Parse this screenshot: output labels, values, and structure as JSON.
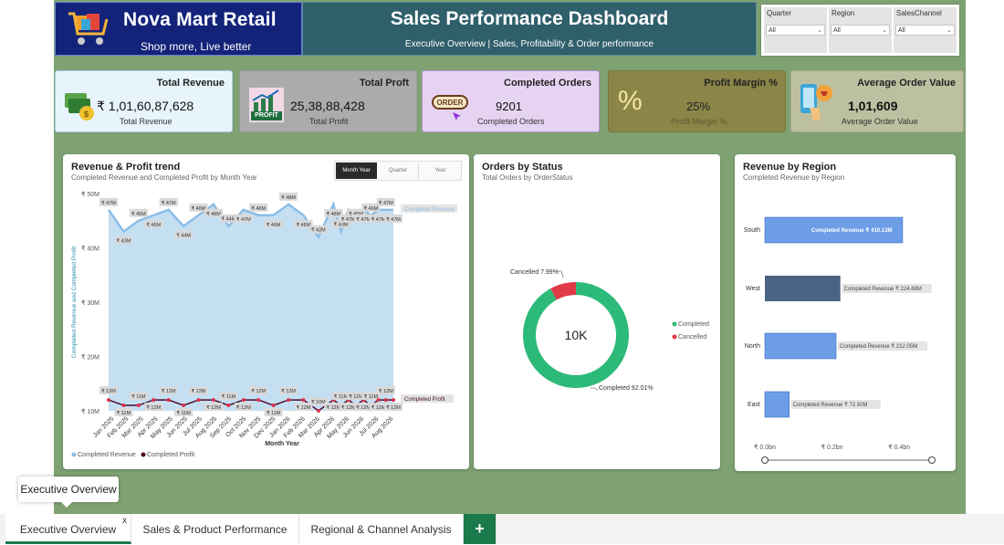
{
  "brand": {
    "name": "Nova Mart Retail",
    "tagline": "Shop more, Live better"
  },
  "header": {
    "title": "Sales Performance Dashboard",
    "subtitle": "Executive Overview | Sales, Profitability & Order performance"
  },
  "filters": [
    {
      "label": "Quarter",
      "value": "All"
    },
    {
      "label": "Region",
      "value": "All"
    },
    {
      "label": "SalesChannel",
      "value": "All"
    }
  ],
  "kpis": [
    {
      "title": "Total Revenue",
      "value": "₹ 1,01,60,87,628",
      "label": "Total Revenue",
      "icon": "money-icon"
    },
    {
      "title": "Total Proft",
      "value": "25,38,88,428",
      "label": "Total Profit",
      "icon": "profit-chart-icon",
      "badge": "PROFIT"
    },
    {
      "title": "Completed Orders",
      "value": "9201",
      "label": "Completed Orders",
      "icon": "order-icon",
      "badge": "ORDER"
    },
    {
      "title": "Profit Margin %",
      "value": "25%",
      "label": "Profit Margin %",
      "icon": "percent-icon"
    },
    {
      "title": "Average Order Value",
      "value": "1,01,609",
      "label": "Average Order Value",
      "icon": "phone-shop-icon"
    }
  ],
  "trend": {
    "title": "Revenue & Profit trend",
    "subtitle": "Completed Revenue and Completed Profit by Month Year",
    "toggles": [
      "Month Year",
      "Quarter",
      "Year"
    ],
    "active_toggle": "Month Year",
    "xlabel": "Month Year",
    "ylabel": "Completed Revenue and Completed Profit",
    "legend": [
      "Completed Revenue",
      "Completed Profit"
    ],
    "series_revenue_label": "Completed Revenue",
    "series_profit_label": "Completed Profit"
  },
  "chart_data": [
    {
      "type": "line",
      "title": "Revenue & Profit trend",
      "subtitle": "Completed Revenue and Completed Profit by Month Year",
      "xlabel": "Month Year",
      "ylabel": "Completed Revenue and Completed Profit",
      "y_ticks": [
        "₹ 10M",
        "₹ 20M",
        "₹ 30M",
        "₹ 40M",
        "₹ 50M"
      ],
      "ylim": [
        10,
        50
      ],
      "x_tick_labels": [
        "Jan 2025",
        "Feb 2025",
        "Mar 2025",
        "Apr 2025",
        "May 2025",
        "Jun 2025",
        "Jul 2025",
        "Aug 2025",
        "Sep 2025",
        "Oct 2025",
        "Nov 2025",
        "Dec 2025",
        "Jan 2026",
        "Feb 2026",
        "Mar 2026",
        "Apr 2026",
        "May 2026",
        "Jun 2026",
        "Jul 2026",
        "Aug 2026"
      ],
      "x_index": [
        0,
        1,
        2,
        3,
        4,
        5,
        6,
        7,
        8,
        9,
        10,
        11,
        12,
        13,
        14,
        15,
        15.5,
        16,
        16.5,
        17,
        17.5,
        18,
        18.5,
        19
      ],
      "series": [
        {
          "name": "Completed Revenue",
          "color": "#8bbde6",
          "values": [
            47,
            43,
            45,
            46,
            47,
            44,
            46,
            48,
            44,
            47,
            46,
            46,
            48,
            46,
            42,
            48,
            43,
            47,
            45,
            47,
            46,
            47,
            47,
            47
          ],
          "labels": [
            "₹ 47M",
            "₹ 43M",
            "₹ 45M",
            "₹ 46M",
            "₹ 47M",
            "₹ 44M",
            "₹ 46M",
            "₹ 48M",
            "₹ 44M",
            "₹ 47M",
            "₹ 46M",
            "₹ 46M",
            "₹ 48M",
            "₹ 46M",
            "₹ 42M",
            "₹ 48M",
            "₹ 43M",
            "₹ 47M",
            "₹ 45M",
            "₹ 47M",
            "₹ 46M",
            "₹ 47M",
            "₹ 47M",
            "₹ 47M"
          ]
        },
        {
          "name": "Completed Profit",
          "color": "#4a0a2c",
          "values": [
            12,
            11,
            11,
            12,
            12,
            11,
            12,
            12,
            11,
            12,
            12,
            11,
            12,
            12,
            10,
            12,
            11,
            12,
            11,
            12,
            11,
            12,
            12,
            12
          ],
          "labels": [
            "₹ 12M",
            "₹ 11M",
            "₹ 11M",
            "₹ 12M",
            "₹ 12M",
            "₹ 11M",
            "₹ 12M",
            "₹ 12M",
            "₹ 11M",
            "₹ 12M",
            "₹ 12M",
            "₹ 11M",
            "₹ 12M",
            "₹ 12M",
            "₹ 10M",
            "₹ 12M",
            "₹ 11M",
            "₹ 12M",
            "₹ 11M",
            "₹ 12M",
            "₹ 11M",
            "₹ 12M",
            "₹ 12M",
            "₹ 12M"
          ]
        }
      ]
    },
    {
      "type": "pie",
      "title": "Orders by Status",
      "subtitle": "Total Orders by OrderStatus",
      "center_label": "10K",
      "slices": [
        {
          "name": "Completed",
          "percent": 92.01,
          "label": "Completed 92.01%",
          "color": "#2dba78"
        },
        {
          "name": "Cancelled",
          "percent": 7.99,
          "label": "Cancelled 7.99%",
          "color": "#e03a47"
        }
      ],
      "legend": [
        "Completed",
        "Cancelled"
      ]
    },
    {
      "type": "bar",
      "title": "Revenue by Region",
      "subtitle": "Completed Revenue by Region",
      "categories": [
        "South",
        "West",
        "North",
        "East"
      ],
      "values": [
        410.13,
        224.69,
        212.05,
        72.5
      ],
      "labels": [
        "Completed Revenue ₹ 410.13M",
        "Completed Revenue ₹ 224.69M",
        "Completed Revenue ₹ 212.05M",
        "Completed Revenue ₹ 72.50M"
      ],
      "colors": [
        "#6c9de6",
        "#4a6483",
        "#6c9de6",
        "#6c9de6"
      ],
      "x_ticks": [
        "₹ 0.0bn",
        "₹ 0.2bn",
        "₹ 0.4bn"
      ],
      "xlim": [
        0,
        0.5
      ]
    }
  ],
  "tabs": [
    {
      "label": "Executive Overview",
      "active": true
    },
    {
      "label": "Sales & Product Performance",
      "active": false
    },
    {
      "label": "Regional & Channel Analysis",
      "active": false
    }
  ],
  "tab_add": "+",
  "tab_close": "x",
  "tooltip": "Executive Overview",
  "colors": {
    "report_bg": "#7ea272",
    "brand_bg": "#13237a",
    "title_bg": "#2f5f6b",
    "accent": "#1a7a4c"
  }
}
